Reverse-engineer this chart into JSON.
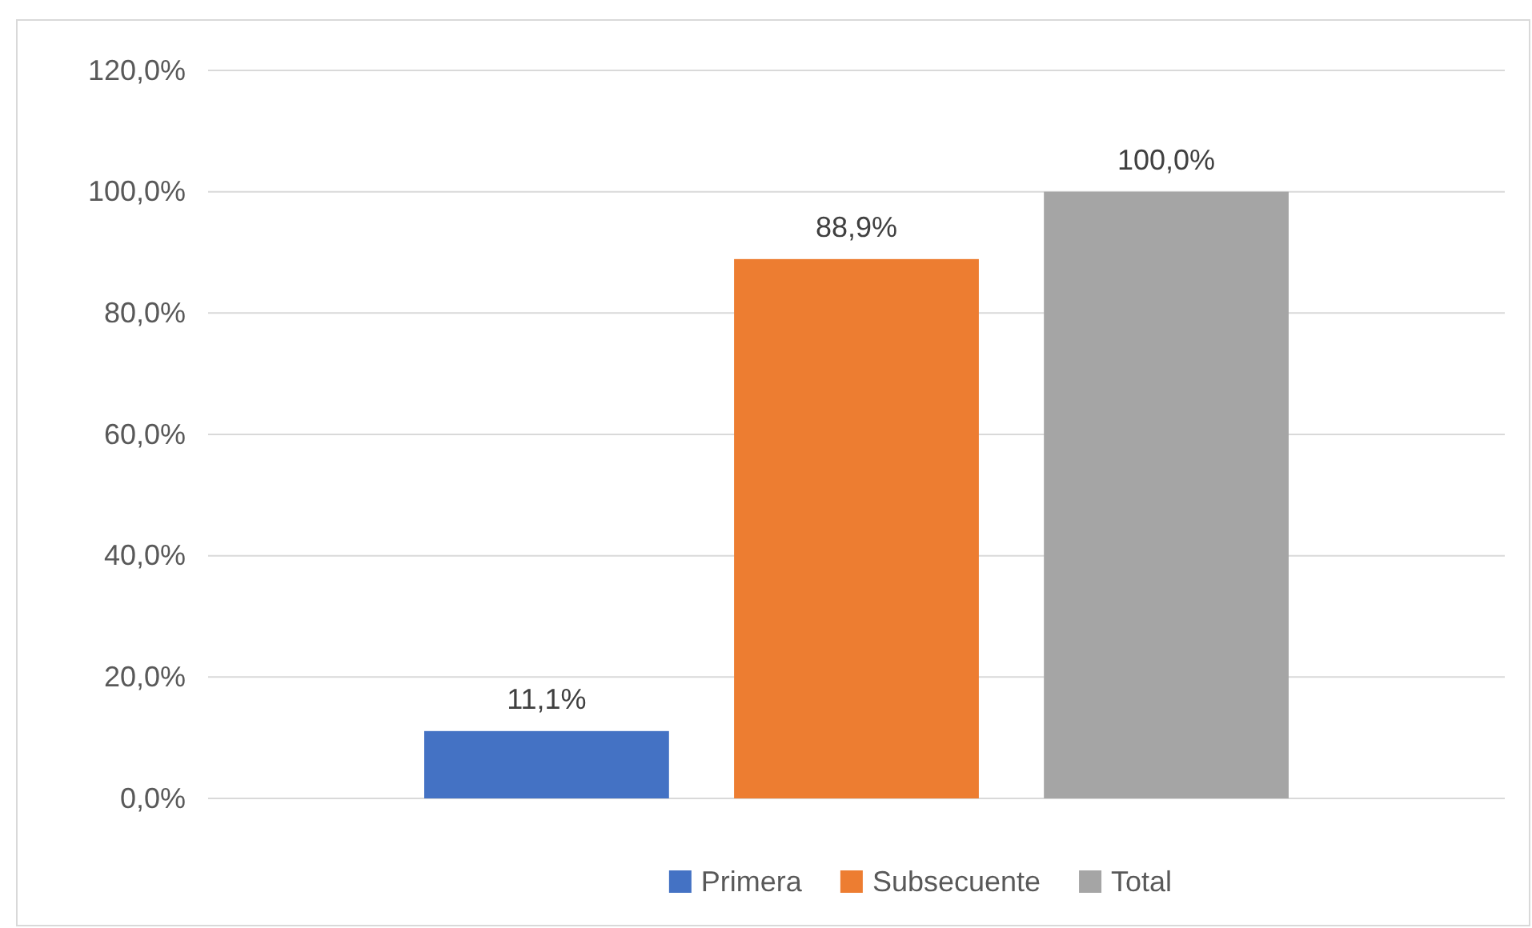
{
  "chart_data": {
    "type": "bar",
    "categories": [
      null
    ],
    "series": [
      {
        "name": "Primera",
        "color": "#4472c4",
        "values": [
          11.1
        ],
        "value_labels": [
          "11,1%"
        ]
      },
      {
        "name": "Subsecuente",
        "color": "#ed7d31",
        "values": [
          88.9
        ],
        "value_labels": [
          "88,9%"
        ]
      },
      {
        "name": "Total",
        "color": "#a5a5a5",
        "values": [
          100
        ],
        "value_labels": [
          "100,0%"
        ]
      }
    ],
    "ylim": [
      0,
      120
    ],
    "yticks": [
      {
        "value": 0,
        "label": "0,0%"
      },
      {
        "value": 20,
        "label": "20,0%"
      },
      {
        "value": 40,
        "label": "40,0%"
      },
      {
        "value": 60,
        "label": "60,0%"
      },
      {
        "value": 80,
        "label": "80,0%"
      },
      {
        "value": 100,
        "label": "100,0%"
      },
      {
        "value": 120,
        "label": "120,0%"
      }
    ],
    "grid": "y",
    "legend": "bottom"
  }
}
